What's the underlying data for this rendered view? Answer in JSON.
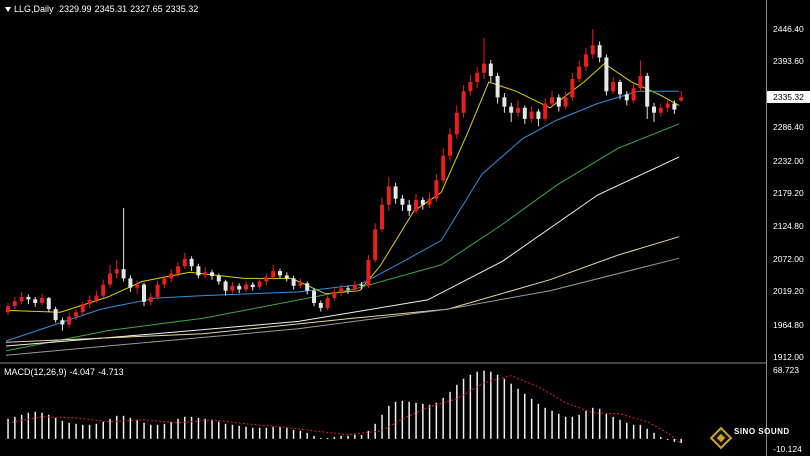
{
  "header": {
    "menu_icon": "triangle-down-icon",
    "symbol_label": "LLG,Daily",
    "open": "2329.99",
    "high": "2345.31",
    "low": "2327.65",
    "close": "2335.32"
  },
  "macd_header": {
    "label": "MACD(12,26,9)",
    "macd": "-4.047",
    "signal": "-4.713"
  },
  "logo": {
    "icon": "diamond-logo-icon",
    "brand": "SINO SOUND"
  },
  "colors": {
    "background": "#000000",
    "up_candle": "#e8201c",
    "down_candle": "#e6e6e6",
    "axis": "#8a8a8a",
    "macd_histogram": "#f0f0f0",
    "macd_signal": "#e0201c"
  },
  "chart_data": [
    {
      "type": "candlestick",
      "ylim": [
        1912.0,
        2446.4
      ],
      "y_ticks": [
        "2446.40",
        "2393.60",
        "2286.40",
        "2232.00",
        "2179.20",
        "2124.80",
        "2072.00",
        "2019.20",
        "1964.80",
        "1912.00"
      ],
      "last_price": "2335.32",
      "ohlc": [
        [
          1985,
          2000,
          1980,
          1995
        ],
        [
          1995,
          2010,
          1990,
          2003
        ],
        [
          2003,
          2018,
          1998,
          2010
        ],
        [
          2010,
          2014,
          1998,
          2006
        ],
        [
          2006,
          2010,
          1994,
          2000
        ],
        [
          2000,
          2015,
          1996,
          2008
        ],
        [
          2008,
          2010,
          1985,
          1990
        ],
        [
          1990,
          1994,
          1968,
          1972
        ],
        [
          1972,
          1976,
          1955,
          1965
        ],
        [
          1965,
          1984,
          1960,
          1978
        ],
        [
          1978,
          1990,
          1972,
          1985
        ],
        [
          1985,
          2002,
          1980,
          1998
        ],
        [
          1998,
          2012,
          1992,
          2005
        ],
        [
          2005,
          2020,
          2000,
          2012
        ],
        [
          2012,
          2038,
          2008,
          2030
        ],
        [
          2030,
          2062,
          2025,
          2048
        ],
        [
          2048,
          2070,
          2040,
          2055
        ],
        [
          2055,
          2155,
          2035,
          2040
        ],
        [
          2040,
          2045,
          2018,
          2025
        ],
        [
          2025,
          2036,
          2015,
          2030
        ],
        [
          2030,
          2033,
          1995,
          2002
        ],
        [
          2002,
          2016,
          1996,
          2010
        ],
        [
          2010,
          2036,
          2005,
          2030
        ],
        [
          2030,
          2046,
          2024,
          2040
        ],
        [
          2040,
          2055,
          2034,
          2048
        ],
        [
          2048,
          2066,
          2042,
          2060
        ],
        [
          2060,
          2082,
          2055,
          2072
        ],
        [
          2072,
          2076,
          2052,
          2060
        ],
        [
          2060,
          2064,
          2040,
          2045
        ],
        [
          2045,
          2058,
          2040,
          2050
        ],
        [
          2050,
          2054,
          2038,
          2044
        ],
        [
          2044,
          2048,
          2030,
          2035
        ],
        [
          2035,
          2038,
          2012,
          2020
        ],
        [
          2020,
          2034,
          2015,
          2028
        ],
        [
          2028,
          2032,
          2016,
          2022
        ],
        [
          2022,
          2036,
          2018,
          2030
        ],
        [
          2030,
          2034,
          2020,
          2026
        ],
        [
          2026,
          2040,
          2022,
          2035
        ],
        [
          2035,
          2048,
          2030,
          2042
        ],
        [
          2042,
          2062,
          2038,
          2052
        ],
        [
          2052,
          2056,
          2040,
          2045
        ],
        [
          2045,
          2050,
          2035,
          2040
        ],
        [
          2040,
          2044,
          2022,
          2028
        ],
        [
          2028,
          2040,
          2024,
          2032
        ],
        [
          2032,
          2035,
          2014,
          2020
        ],
        [
          2020,
          2024,
          1995,
          2000
        ],
        [
          2000,
          2004,
          1986,
          1992
        ],
        [
          1992,
          2012,
          1988,
          2008
        ],
        [
          2008,
          2024,
          2004,
          2018
        ],
        [
          2018,
          2030,
          2012,
          2024
        ],
        [
          2024,
          2028,
          2015,
          2022
        ],
        [
          2022,
          2036,
          2018,
          2030
        ],
        [
          2030,
          2034,
          2022,
          2028
        ],
        [
          2028,
          2078,
          2024,
          2070
        ],
        [
          2070,
          2130,
          2066,
          2120
        ],
        [
          2120,
          2172,
          2115,
          2160
        ],
        [
          2160,
          2205,
          2150,
          2190
        ],
        [
          2190,
          2196,
          2162,
          2170
        ],
        [
          2170,
          2176,
          2150,
          2160
        ],
        [
          2160,
          2168,
          2142,
          2150
        ],
        [
          2150,
          2178,
          2145,
          2168
        ],
        [
          2168,
          2172,
          2152,
          2160
        ],
        [
          2160,
          2180,
          2155,
          2170
        ],
        [
          2170,
          2210,
          2165,
          2200
        ],
        [
          2200,
          2252,
          2195,
          2240
        ],
        [
          2240,
          2285,
          2232,
          2275
        ],
        [
          2275,
          2322,
          2268,
          2310
        ],
        [
          2310,
          2355,
          2302,
          2345
        ],
        [
          2345,
          2372,
          2338,
          2360
        ],
        [
          2360,
          2385,
          2350,
          2375
        ],
        [
          2375,
          2432,
          2365,
          2390
        ],
        [
          2390,
          2396,
          2360,
          2370
        ],
        [
          2370,
          2375,
          2325,
          2335
        ],
        [
          2335,
          2342,
          2310,
          2320
        ],
        [
          2320,
          2326,
          2295,
          2310
        ],
        [
          2310,
          2330,
          2302,
          2318
        ],
        [
          2318,
          2322,
          2292,
          2300
        ],
        [
          2300,
          2320,
          2294,
          2312
        ],
        [
          2312,
          2316,
          2288,
          2300
        ],
        [
          2300,
          2334,
          2296,
          2325
        ],
        [
          2325,
          2345,
          2318,
          2335
        ],
        [
          2335,
          2340,
          2312,
          2320
        ],
        [
          2320,
          2344,
          2315,
          2335
        ],
        [
          2335,
          2375,
          2330,
          2365
        ],
        [
          2365,
          2395,
          2360,
          2385
        ],
        [
          2385,
          2415,
          2378,
          2405
        ],
        [
          2405,
          2446,
          2398,
          2420
        ],
        [
          2420,
          2426,
          2392,
          2400
        ],
        [
          2400,
          2405,
          2338,
          2345
        ],
        [
          2345,
          2368,
          2340,
          2360
        ],
        [
          2360,
          2364,
          2332,
          2340
        ],
        [
          2340,
          2345,
          2322,
          2330
        ],
        [
          2330,
          2358,
          2326,
          2350
        ],
        [
          2350,
          2395,
          2345,
          2370
        ],
        [
          2370,
          2375,
          2300,
          2320
        ],
        [
          2320,
          2326,
          2295,
          2310
        ],
        [
          2310,
          2325,
          2304,
          2318
        ],
        [
          2318,
          2332,
          2312,
          2325
        ],
        [
          2325,
          2330,
          2308,
          2315
        ],
        [
          2329.99,
          2345.31,
          2327.65,
          2335.32
        ]
      ],
      "moving_averages": [
        {
          "color": "#d9d400",
          "points": [
            [
              0,
              1988
            ],
            [
              8,
              1985
            ],
            [
              15,
              2010
            ],
            [
              20,
              2035
            ],
            [
              27,
              2050
            ],
            [
              35,
              2040
            ],
            [
              42,
              2040
            ],
            [
              47,
              2015
            ],
            [
              52,
              2020
            ],
            [
              55,
              2060
            ],
            [
              60,
              2150
            ],
            [
              64,
              2180
            ],
            [
              68,
              2280
            ],
            [
              71,
              2360
            ],
            [
              75,
              2345
            ],
            [
              80,
              2318
            ],
            [
              85,
              2360
            ],
            [
              88,
              2390
            ],
            [
              92,
              2360
            ],
            [
              96,
              2340
            ],
            [
              99,
              2322
            ]
          ]
        },
        {
          "color": "#2f8fdb",
          "points": [
            [
              0,
              1938
            ],
            [
              14,
              1990
            ],
            [
              22,
              2008
            ],
            [
              29,
              2012
            ],
            [
              36,
              2015
            ],
            [
              43,
              2018
            ],
            [
              52,
              2030
            ],
            [
              58,
              2065
            ],
            [
              64,
              2102
            ],
            [
              70,
              2210
            ],
            [
              76,
              2268
            ],
            [
              81,
              2298
            ],
            [
              87,
              2325
            ],
            [
              93,
              2345
            ],
            [
              99,
              2345
            ]
          ]
        },
        {
          "color": "#3aa84a",
          "points": [
            [
              0,
              1922
            ],
            [
              15,
              1955
            ],
            [
              29,
              1975
            ],
            [
              36,
              1990
            ],
            [
              51,
              2022
            ],
            [
              64,
              2062
            ],
            [
              73,
              2128
            ],
            [
              81,
              2192
            ],
            [
              90,
              2252
            ],
            [
              99,
              2292
            ]
          ]
        },
        {
          "color": "#f0f0f0",
          "points": [
            [
              0,
              1930
            ],
            [
              22,
              1950
            ],
            [
              43,
              1970
            ],
            [
              62,
              2005
            ],
            [
              73,
              2068
            ],
            [
              87,
              2176
            ],
            [
              99,
              2238
            ]
          ]
        },
        {
          "color": "#e8d9a0",
          "points": [
            [
              0,
              1936
            ],
            [
              29,
              1950
            ],
            [
              51,
              1975
            ],
            [
              65,
              1990
            ],
            [
              80,
              2038
            ],
            [
              90,
              2078
            ],
            [
              99,
              2108
            ]
          ]
        },
        {
          "color": "#9a9a9a",
          "points": [
            [
              0,
              1915
            ],
            [
              43,
              1958
            ],
            [
              65,
              1990
            ],
            [
              80,
              2020
            ],
            [
              99,
              2073
            ]
          ]
        }
      ]
    },
    {
      "type": "bar",
      "ylim": [
        -10.124,
        68.723
      ],
      "y_ticks": [
        "68.723",
        "-10.124"
      ],
      "values": [
        20,
        22,
        24,
        26,
        27,
        26,
        24,
        21,
        18,
        16,
        15,
        14,
        14,
        15,
        17,
        20,
        23,
        23,
        21,
        19,
        16,
        14,
        14,
        15,
        17,
        20,
        22,
        22,
        21,
        20,
        19,
        17,
        15,
        14,
        13,
        12,
        11,
        11,
        11,
        12,
        12,
        11,
        9,
        8,
        6,
        3,
        1,
        1,
        2,
        3,
        3,
        4,
        4,
        8,
        15,
        24,
        33,
        37,
        38,
        37,
        36,
        35,
        34,
        36,
        41,
        47,
        54,
        60,
        64,
        67,
        68,
        67,
        64,
        60,
        55,
        50,
        45,
        40,
        35,
        31,
        28,
        25,
        22,
        22,
        24,
        28,
        31,
        30,
        25,
        22,
        19,
        16,
        14,
        14,
        10,
        6,
        2,
        -1,
        -3,
        -4.047
      ],
      "signal": [
        [
          0,
          16
        ],
        [
          5,
          22
        ],
        [
          10,
          21
        ],
        [
          15,
          17
        ],
        [
          20,
          19
        ],
        [
          25,
          16
        ],
        [
          30,
          19
        ],
        [
          35,
          15
        ],
        [
          40,
          12
        ],
        [
          45,
          8
        ],
        [
          50,
          4
        ],
        [
          55,
          8
        ],
        [
          58,
          20
        ],
        [
          62,
          32
        ],
        [
          66,
          40
        ],
        [
          70,
          56
        ],
        [
          74,
          63
        ],
        [
          78,
          52
        ],
        [
          82,
          36
        ],
        [
          86,
          26
        ],
        [
          90,
          25
        ],
        [
          94,
          17
        ],
        [
          97,
          6
        ],
        [
          99,
          -4.713
        ]
      ]
    }
  ]
}
